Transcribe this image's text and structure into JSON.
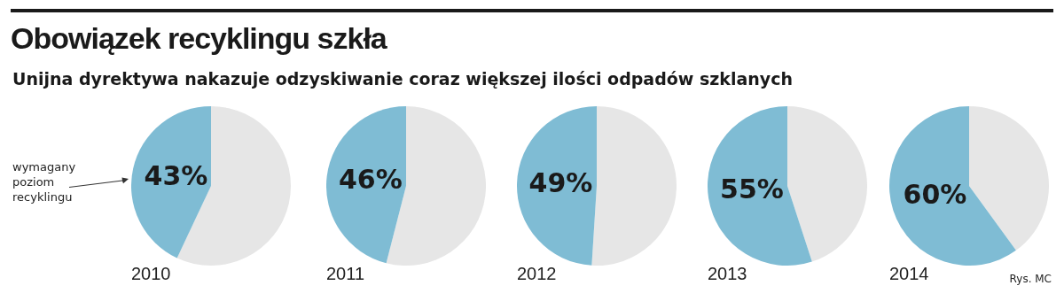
{
  "chart_data": [
    {
      "type": "pie",
      "title": "Obowiązek recyklingu szkła",
      "subtitle": "Unijna dyrektywa nakazuje odzyskiwanie coraz większej ilości odpadów szklanych",
      "xlabel": "2010",
      "categories": [
        null,
        null
      ],
      "values": [
        57,
        43
      ],
      "colors": [
        "#e6e6e6",
        "#7fbcd4"
      ],
      "value_labels": [
        null,
        "43%"
      ],
      "annotations": [
        "wymagany poziom recyklingu"
      ],
      "legend": false
    },
    {
      "type": "pie",
      "xlabel": "2011",
      "categories": [
        null,
        null
      ],
      "values": [
        54,
        46
      ],
      "colors": [
        "#e6e6e6",
        "#7fbcd4"
      ],
      "value_labels": [
        null,
        "46%"
      ],
      "legend": false
    },
    {
      "type": "pie",
      "xlabel": "2012",
      "categories": [
        null,
        null
      ],
      "values": [
        51,
        49
      ],
      "colors": [
        "#e6e6e6",
        "#7fbcd4"
      ],
      "value_labels": [
        null,
        "49%"
      ],
      "legend": false
    },
    {
      "type": "pie",
      "xlabel": "2013",
      "categories": [
        null,
        null
      ],
      "values": [
        45,
        55
      ],
      "colors": [
        "#e6e6e6",
        "#7fbcd4"
      ],
      "value_labels": [
        null,
        "55%"
      ],
      "legend": false
    },
    {
      "type": "pie",
      "xlabel": "2014",
      "categories": [
        null,
        null
      ],
      "values": [
        40,
        60
      ],
      "colors": [
        "#e6e6e6",
        "#7fbcd4"
      ],
      "value_labels": [
        null,
        "60%"
      ],
      "annotations": [
        "Rys. MC"
      ],
      "legend": false
    }
  ]
}
